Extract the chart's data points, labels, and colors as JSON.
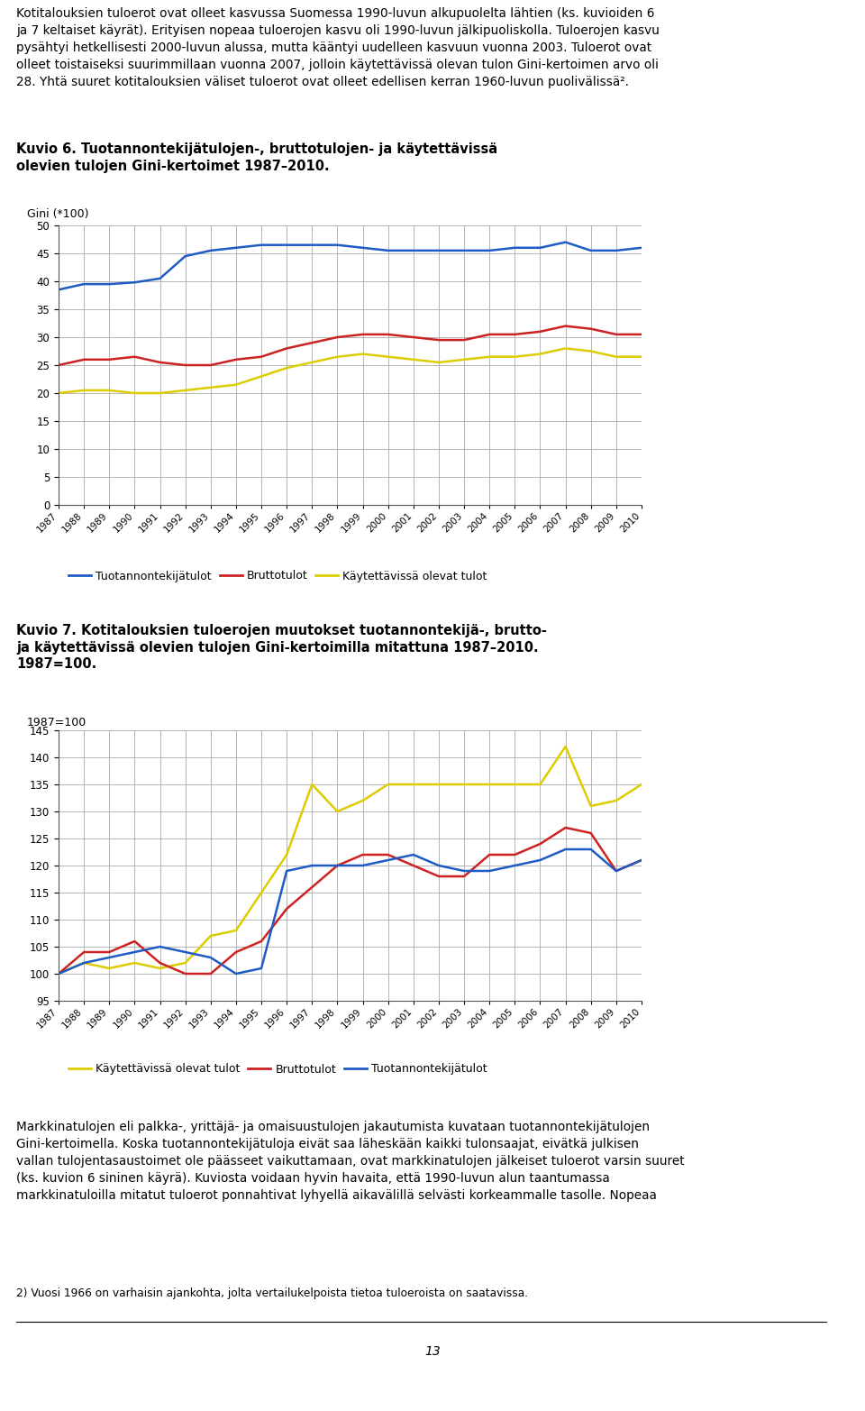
{
  "text_top": "Kotitalouksien tuloerot ovat olleet kasvussa Suomessa 1990-luvun alkupuolelta lähtien (ks. kuvioiden 6\nja 7 keltaiset käyrät). Erityisen nopeaa tuloerojen kasvu oli 1990-luvun jälkipuoliskolla. Tuloerojen kasvu\npysähtyi hetkellisesti 2000-luvun alussa, mutta kääntyi uudelleen kasvuun vuonna 2003. Tuloerot ovat\nolleet toistaiseksi suurimmillaan vuonna 2007, jolloin käytettävissä olevan tulon Gini-kertoimen arvo oli\n28. Yhtä suuret kotitalouksien väliset tuloerot ovat olleet edellisen kerran 1960-luvun puolivälissä².",
  "fig6_title": "Kuvio 6. Tuotannontekijätulojen-, bruttotulojen- ja käytettävissä\nolevien tulojen Gini-kertoimet 1987–2010.",
  "fig6_ylabel": "Gini (*100)",
  "fig6_years": [
    1987,
    1988,
    1989,
    1990,
    1991,
    1992,
    1993,
    1994,
    1995,
    1996,
    1997,
    1998,
    1999,
    2000,
    2001,
    2002,
    2003,
    2004,
    2005,
    2006,
    2007,
    2008,
    2009,
    2010
  ],
  "fig6_tuotanto": [
    38.5,
    39.5,
    39.5,
    39.8,
    40.5,
    44.5,
    45.5,
    46.0,
    46.5,
    46.5,
    46.5,
    46.5,
    46.0,
    45.5,
    45.5,
    45.5,
    45.5,
    45.5,
    46.0,
    46.0,
    47.0,
    45.5,
    45.5,
    46.0
  ],
  "fig6_brutto": [
    25.0,
    26.0,
    26.0,
    26.5,
    25.5,
    25.0,
    25.0,
    26.0,
    26.5,
    28.0,
    29.0,
    30.0,
    30.5,
    30.5,
    30.0,
    29.5,
    29.5,
    30.5,
    30.5,
    31.0,
    32.0,
    31.5,
    30.5,
    30.5
  ],
  "fig6_kaytettavissa": [
    20.0,
    20.5,
    20.5,
    20.0,
    20.0,
    20.5,
    21.0,
    21.5,
    23.0,
    24.5,
    25.5,
    26.5,
    27.0,
    26.5,
    26.0,
    25.5,
    26.0,
    26.5,
    26.5,
    27.0,
    28.0,
    27.5,
    26.5,
    26.5
  ],
  "fig6_ylim": [
    0,
    50
  ],
  "fig6_yticks": [
    0,
    5,
    10,
    15,
    20,
    25,
    30,
    35,
    40,
    45,
    50
  ],
  "fig7_title_l1": "Kuvio 7. Kotitalouksien tuloerojen muutokset tuotannontekijä-, brutto-",
  "fig7_title_l2": "ja käytettävissä olevien tulojen Gini-kertoimilla mitattuna 1987–2010.",
  "fig7_title_l3": "1987=100.",
  "fig7_ylabel": "1987=100",
  "fig7_years": [
    1987,
    1988,
    1989,
    1990,
    1991,
    1992,
    1993,
    1994,
    1995,
    1996,
    1997,
    1998,
    1999,
    2000,
    2001,
    2002,
    2003,
    2004,
    2005,
    2006,
    2007,
    2008,
    2009,
    2010
  ],
  "fig7_tuotanto": [
    100,
    102,
    103,
    104,
    105,
    104,
    103,
    100,
    101,
    119,
    120,
    120,
    120,
    121,
    122,
    120,
    119,
    119,
    120,
    121,
    123,
    123,
    119,
    121
  ],
  "fig7_brutto": [
    100,
    104,
    104,
    106,
    102,
    100,
    100,
    104,
    106,
    112,
    116,
    120,
    122,
    122,
    120,
    118,
    118,
    122,
    122,
    124,
    127,
    126,
    119,
    121
  ],
  "fig7_kaytettavissa": [
    100,
    102,
    101,
    102,
    101,
    102,
    107,
    108,
    115,
    122,
    135,
    130,
    132,
    135,
    135,
    135,
    135,
    135,
    135,
    135,
    142,
    131,
    132,
    135
  ],
  "fig7_ylim": [
    95,
    145
  ],
  "fig7_yticks": [
    95,
    100,
    105,
    110,
    115,
    120,
    125,
    130,
    135,
    140,
    145
  ],
  "legend6_labels": [
    "Tuotannontekijätulot",
    "Bruttotulot",
    "Käytettävissä olevat tulot"
  ],
  "legend7_labels": [
    "Käytettävissä olevat tulot",
    "Bruttotulot",
    "Tuotannontekijätulot"
  ],
  "color_blue": "#1F5BC4",
  "color_red": "#CC2222",
  "color_yellow": "#DDCC00",
  "text_bottom": "Markkinatulojen eli palkka-, yrittäjä- ja omaisuustulojen jakautumista kuvataan tuotannontekijätulojen\nGini-kertoimella. Koska tuotannontekijätuloja eivät saa läheskään kaikki tulonsaajat, eivätkä julkisen\nvallan tulojentasaustoimet ole päässeet vaikuttamaan, ovat markkinatulojen jälkeiset tuloerot varsin suuret\n(ks. kuvion 6 sininen käyrä). Kuviosta voidaan hyvin havaita, että 1990-luvun alun taantumassa\nmarkkinatuloilla mitatut tuloerot ponnahtivat lyhyellä aikavälillä selvästi korkeammalle tasolle. Nopeaa",
  "footnote": "2) Vuosi 1966 on varhaisin ajankohta, jolta vertailukelpoista tietoa tuloeroista on saatavissa.",
  "page_num": "13",
  "background_color": "#ffffff",
  "grid_color": "#aaaaaa",
  "spine_color": "#555555"
}
